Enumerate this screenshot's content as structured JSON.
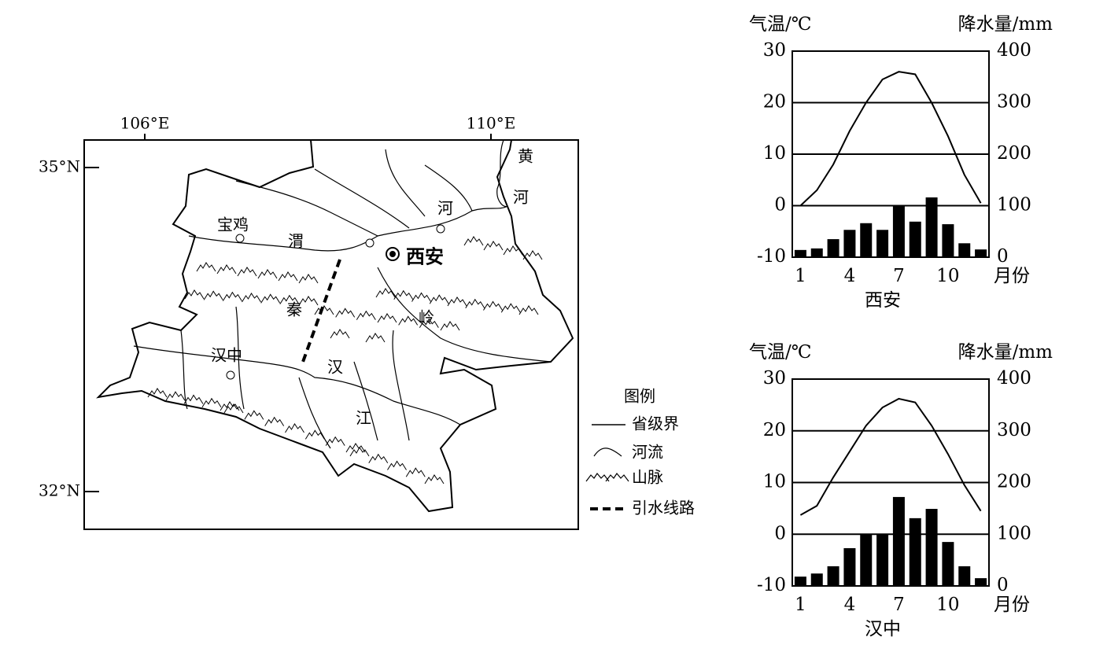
{
  "map": {
    "lon_labels": [
      "106°E",
      "110°E"
    ],
    "lat_labels": [
      "35°N",
      "32°N"
    ],
    "places": [
      "宝鸡",
      "西安",
      "汉中"
    ],
    "features": [
      "渭",
      "河",
      "黄",
      "河",
      "秦",
      "岭",
      "汉",
      "江"
    ]
  },
  "legend": {
    "title": "图例",
    "items": [
      "省级界",
      "河流",
      "山脉",
      "引水线路"
    ]
  },
  "chart_data": [
    {
      "type": "bar_line",
      "title": "西安",
      "y_label": "气温/℃",
      "y2_label": "降水量/mm",
      "x_label": "月份",
      "categories": [
        1,
        null,
        null,
        4,
        null,
        null,
        7,
        null,
        null,
        10,
        null,
        null
      ],
      "series": [
        {
          "type": "line",
          "color": "#000000",
          "values": [
            0,
            3,
            8,
            14.5,
            20,
            24.5,
            26,
            25.5,
            20,
            13.5,
            6,
            0.5
          ]
        },
        {
          "type": "bar",
          "axis": "y2",
          "color": "#000000",
          "values": [
            14,
            17,
            35,
            53,
            66,
            53,
            100,
            69,
            116,
            64,
            27,
            15
          ]
        }
      ],
      "ylim": [
        -10,
        30
      ],
      "yticks": [
        -10,
        0,
        10,
        20,
        30
      ],
      "y2lim": [
        0,
        400
      ],
      "y2ticks": [
        0,
        100,
        200,
        300,
        400
      ],
      "grid": true
    },
    {
      "type": "bar_line",
      "title": "汉中",
      "y_label": "气温/℃",
      "y2_label": "降水量/mm",
      "x_label": "月份",
      "categories": [
        1,
        null,
        null,
        4,
        null,
        null,
        7,
        null,
        null,
        10,
        null,
        null
      ],
      "series": [
        {
          "type": "line",
          "color": "#000000",
          "values": [
            3.7,
            5.5,
            11,
            16,
            21,
            24.5,
            26.2,
            25.5,
            21,
            15.5,
            9.5,
            4.5
          ]
        },
        {
          "type": "bar",
          "axis": "y2",
          "color": "#000000",
          "values": [
            18,
            24,
            38,
            73,
            100,
            100,
            172,
            131,
            149,
            85,
            38,
            15
          ]
        }
      ],
      "ylim": [
        -10,
        30
      ],
      "yticks": [
        -10,
        0,
        10,
        20,
        30
      ],
      "y2lim": [
        0,
        400
      ],
      "y2ticks": [
        0,
        100,
        200,
        300,
        400
      ],
      "grid": true
    }
  ]
}
